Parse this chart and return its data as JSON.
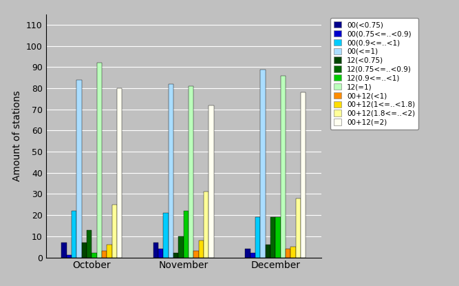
{
  "categories": [
    "October",
    "November",
    "December"
  ],
  "series": [
    {
      "label": "00(<0.75)",
      "color": "#00008B",
      "values": [
        7,
        7,
        4
      ]
    },
    {
      "label": "00(0.75<=..<0.9)",
      "color": "#0000CD",
      "values": [
        1,
        4,
        2
      ]
    },
    {
      "label": "00(0.9<=..<1)",
      "color": "#00CCFF",
      "values": [
        22,
        21,
        19
      ]
    },
    {
      "label": "00(<=1)",
      "color": "#AADDFF",
      "values": [
        84,
        82,
        89
      ]
    },
    {
      "label": "12(<0.75)",
      "color": "#004400",
      "values": [
        7,
        2,
        6
      ]
    },
    {
      "label": "12(0.75<=..<0.9)",
      "color": "#006600",
      "values": [
        13,
        10,
        19
      ]
    },
    {
      "label": "12(0.9<=..<1)",
      "color": "#00CC00",
      "values": [
        2,
        22,
        19
      ]
    },
    {
      "label": "12(=1)",
      "color": "#BBFFBB",
      "values": [
        92,
        81,
        86
      ]
    },
    {
      "label": "00+12(<1)",
      "color": "#FF8C00",
      "values": [
        3,
        3,
        4
      ]
    },
    {
      "label": "00+12(1<=..<1.8)",
      "color": "#FFDD00",
      "values": [
        6,
        8,
        5
      ]
    },
    {
      "label": "00+12(1.8<=..<2)",
      "color": "#FFFF99",
      "values": [
        25,
        31,
        28
      ]
    },
    {
      "label": "00+12(=2)",
      "color": "#FFFFF0",
      "values": [
        80,
        72,
        78
      ]
    }
  ],
  "ylabel": "Amount of stations",
  "ylim": [
    0,
    115
  ],
  "yticks": [
    0,
    10,
    20,
    30,
    40,
    50,
    60,
    70,
    80,
    90,
    100,
    110
  ],
  "bg_color": "#C0C0C0",
  "plot_bg_color": "#C0C0C0",
  "bar_width": 0.055,
  "group_width": 0.75
}
